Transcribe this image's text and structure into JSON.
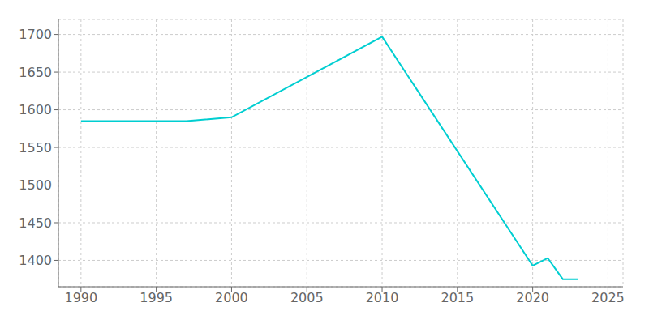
{
  "chart_data": {
    "type": "line",
    "x": [
      1990,
      1997,
      2000,
      2010,
      2020,
      2021,
      2022,
      2023
    ],
    "values": [
      1585,
      1585,
      1590,
      1697,
      1393,
      1403,
      1375,
      1375
    ],
    "color": "#00CED1",
    "xlim": [
      1988.5,
      2026
    ],
    "ylim": [
      1365,
      1720
    ],
    "xticks": [
      1990,
      1995,
      2000,
      2005,
      2010,
      2015,
      2020,
      2025
    ],
    "yticks": [
      1400,
      1450,
      1500,
      1550,
      1600,
      1650,
      1700
    ],
    "grid": true
  }
}
